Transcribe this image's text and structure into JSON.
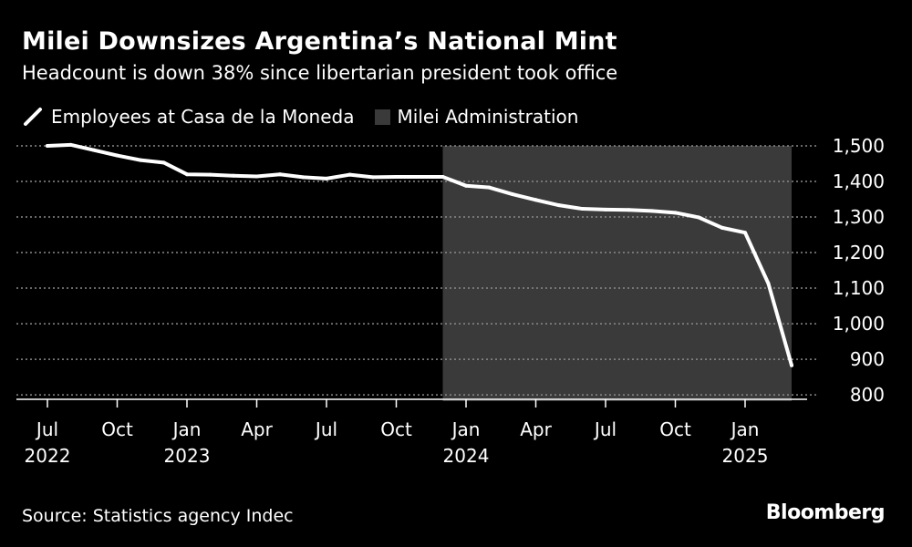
{
  "header": {
    "title": "Milei Downsizes Argentina’s National Mint",
    "subtitle": "Headcount is down 38% since libertarian president took office"
  },
  "legend": {
    "series_label": "Employees at Casa de la Moneda",
    "shade_label": "Milei Administration"
  },
  "footer": {
    "source": "Source: Statistics agency Indec",
    "brand": "Bloomberg"
  },
  "colors": {
    "background": "#000000",
    "line": "#ffffff",
    "shade": "#3a3a3a",
    "grid": "#8a8a8a"
  },
  "chart_data": {
    "type": "line",
    "series": [
      {
        "name": "Employees at Casa de la Moneda",
        "x_months": [
          "2022-07",
          "2022-08",
          "2022-09",
          "2022-10",
          "2022-11",
          "2022-12",
          "2023-01",
          "2023-02",
          "2023-03",
          "2023-04",
          "2023-05",
          "2023-06",
          "2023-07",
          "2023-08",
          "2023-09",
          "2023-10",
          "2023-11",
          "2023-12",
          "2024-01",
          "2024-02",
          "2024-03",
          "2024-04",
          "2024-05",
          "2024-06",
          "2024-07",
          "2024-08",
          "2024-09",
          "2024-10",
          "2024-11",
          "2024-12",
          "2025-01",
          "2025-02",
          "2025-03"
        ],
        "values": [
          1500,
          1503,
          1488,
          1473,
          1460,
          1453,
          1420,
          1419,
          1416,
          1414,
          1420,
          1412,
          1408,
          1419,
          1412,
          1413,
          1413,
          1413,
          1388,
          1383,
          1364,
          1348,
          1333,
          1323,
          1321,
          1320,
          1317,
          1312,
          1299,
          1270,
          1256,
          1113,
          883
        ]
      }
    ],
    "shaded_region": {
      "label": "Milei Administration",
      "start": "2023-12",
      "end": "2025-03"
    },
    "x_ticks": [
      {
        "month": "2022-07",
        "label": "Jul",
        "year": "2022"
      },
      {
        "month": "2022-10",
        "label": "Oct",
        "year": ""
      },
      {
        "month": "2023-01",
        "label": "Jan",
        "year": "2023"
      },
      {
        "month": "2023-04",
        "label": "Apr",
        "year": ""
      },
      {
        "month": "2023-07",
        "label": "Jul",
        "year": ""
      },
      {
        "month": "2023-10",
        "label": "Oct",
        "year": ""
      },
      {
        "month": "2024-01",
        "label": "Jan",
        "year": "2024"
      },
      {
        "month": "2024-04",
        "label": "Apr",
        "year": ""
      },
      {
        "month": "2024-07",
        "label": "Jul",
        "year": ""
      },
      {
        "month": "2024-10",
        "label": "Oct",
        "year": ""
      },
      {
        "month": "2025-01",
        "label": "Jan",
        "year": "2025"
      }
    ],
    "y_ticks": [
      800,
      900,
      1000,
      1100,
      1200,
      1300,
      1400,
      1500
    ],
    "y_tick_labels": [
      "800",
      "900",
      "1,000",
      "1,100",
      "1,200",
      "1,300",
      "1,400",
      "1,500"
    ],
    "ylim": [
      790,
      1500
    ],
    "grid": true,
    "title": "Milei Downsizes Argentina’s National Mint",
    "xlabel": "",
    "ylabel": ""
  }
}
